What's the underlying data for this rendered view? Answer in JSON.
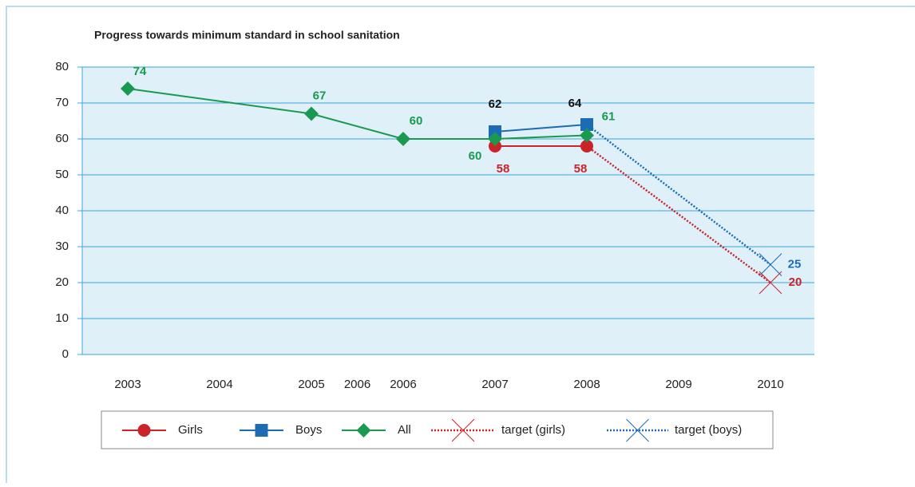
{
  "chart_data": {
    "type": "line",
    "title": "Progress towards minimum standard in school sanitation",
    "xlim": [
      2002.5,
      2010.5
    ],
    "xticks": [
      2003,
      2004,
      2005,
      {
        "value": 2005.5,
        "label": "2006"
      },
      2006,
      2007,
      2008,
      2009,
      2010
    ],
    "ylim": [
      0,
      80
    ],
    "yticks": [
      0,
      10,
      20,
      30,
      40,
      50,
      60,
      70,
      80
    ],
    "grid": true,
    "series": [
      {
        "name": "Girls",
        "color": "#cc2229",
        "marker": "circle",
        "x": [
          2007,
          2008
        ],
        "values": [
          58,
          58
        ]
      },
      {
        "name": "Boys",
        "color": "#1b6cb5",
        "marker": "square",
        "x": [
          2007,
          2008
        ],
        "values": [
          62,
          64
        ]
      },
      {
        "name": "All",
        "color": "#1a9a50",
        "marker": "diamond",
        "x": [
          2003,
          2005,
          2006,
          2007,
          2008
        ],
        "values": [
          74,
          67,
          60,
          60,
          61
        ]
      },
      {
        "name": "target (girls)",
        "color": "#cc2229",
        "marker": "x",
        "dotted": true,
        "x": [
          2008,
          2010
        ],
        "values": [
          58,
          20
        ]
      },
      {
        "name": "target (boys)",
        "color": "#1b6cb5",
        "marker": "x",
        "dotted": true,
        "x": [
          2008,
          2010
        ],
        "values": [
          64,
          25
        ]
      }
    ]
  }
}
